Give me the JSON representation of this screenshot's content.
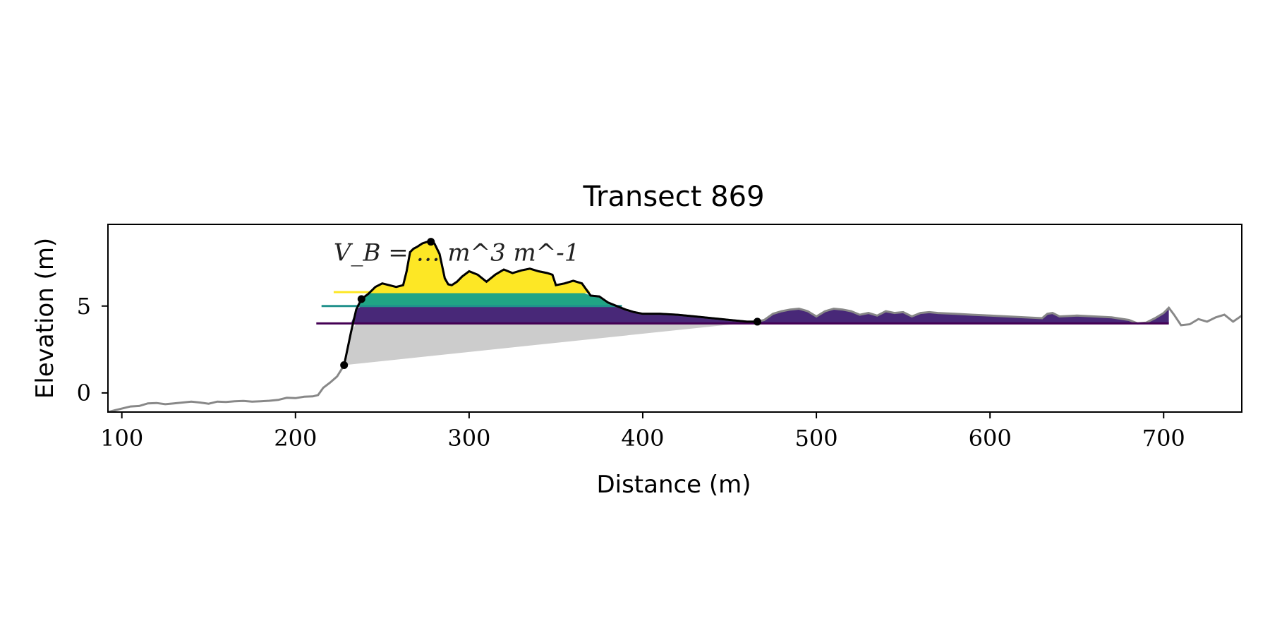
{
  "chart_data": {
    "type": "area",
    "title": "Transect 869",
    "xlabel": "Distance (m)",
    "ylabel": "Elevation (m)",
    "xlim": [
      92,
      745
    ],
    "ylim": [
      -1.1,
      9.7
    ],
    "xticks": [
      100,
      200,
      300,
      400,
      500,
      600,
      700
    ],
    "yticks": [
      0,
      5
    ],
    "annotation": "V_B = … m^3 m^-1",
    "grid": false,
    "profile": {
      "x": [
        92,
        96,
        100,
        105,
        110,
        115,
        120,
        125,
        130,
        135,
        140,
        145,
        150,
        155,
        160,
        165,
        170,
        175,
        180,
        185,
        190,
        195,
        200,
        205,
        210,
        213,
        216,
        220,
        224,
        228,
        232,
        235,
        238,
        242,
        246,
        250,
        254,
        258,
        262,
        264,
        266,
        268,
        270,
        273,
        276,
        278,
        280,
        283,
        286,
        288,
        290,
        293,
        296,
        300,
        305,
        310,
        315,
        320,
        325,
        330,
        335,
        340,
        345,
        348,
        350,
        355,
        360,
        365,
        370,
        375,
        380,
        385,
        390,
        395,
        400,
        410,
        420,
        430,
        440,
        450,
        460,
        466,
        470,
        475,
        480,
        485,
        490,
        495,
        500,
        505,
        510,
        515,
        520,
        525,
        530,
        535,
        540,
        545,
        550,
        555,
        560,
        565,
        570,
        580,
        590,
        600,
        610,
        620,
        630,
        633,
        636,
        640,
        650,
        660,
        670,
        680,
        685,
        690,
        695,
        700,
        703,
        706,
        710,
        715,
        720,
        725,
        730,
        735,
        740,
        745
      ],
      "y": [
        -1.1,
        -1.0,
        -0.9,
        -0.78,
        -0.75,
        -0.6,
        -0.58,
        -0.65,
        -0.6,
        -0.55,
        -0.5,
        -0.55,
        -0.62,
        -0.5,
        -0.52,
        -0.48,
        -0.46,
        -0.5,
        -0.48,
        -0.45,
        -0.4,
        -0.28,
        -0.3,
        -0.22,
        -0.2,
        -0.12,
        0.3,
        0.6,
        0.95,
        1.6,
        3.5,
        4.8,
        5.4,
        5.7,
        6.1,
        6.3,
        6.2,
        6.1,
        6.2,
        7.0,
        8.1,
        8.3,
        8.4,
        8.6,
        8.7,
        8.72,
        8.6,
        8.0,
        6.6,
        6.25,
        6.2,
        6.4,
        6.7,
        7.0,
        6.8,
        6.4,
        6.8,
        7.1,
        6.9,
        7.05,
        7.15,
        7.0,
        6.9,
        6.8,
        6.2,
        6.3,
        6.45,
        6.3,
        5.6,
        5.55,
        5.2,
        5.0,
        4.8,
        4.65,
        4.55,
        4.55,
        4.5,
        4.4,
        4.3,
        4.2,
        4.1,
        4.1,
        4.2,
        4.55,
        4.7,
        4.8,
        4.85,
        4.7,
        4.4,
        4.7,
        4.85,
        4.8,
        4.7,
        4.5,
        4.6,
        4.45,
        4.7,
        4.6,
        4.65,
        4.4,
        4.6,
        4.65,
        4.6,
        4.55,
        4.5,
        4.45,
        4.4,
        4.35,
        4.3,
        4.55,
        4.6,
        4.4,
        4.45,
        4.4,
        4.35,
        4.2,
        4.0,
        4.05,
        4.3,
        4.6,
        4.9,
        4.5,
        3.9,
        3.95,
        4.25,
        4.1,
        4.35,
        4.5,
        4.1,
        4.45
      ]
    },
    "series": [
      {
        "color": "#fde725",
        "level": 5.8,
        "start": 222,
        "end": 368
      },
      {
        "color": "#21918c",
        "level": 5.0,
        "start": 215,
        "end": 388
      },
      {
        "color": "#440154",
        "level": 4.0,
        "start": 212,
        "end": 703
      }
    ],
    "key_points": [
      {
        "x": 228,
        "y": 1.6
      },
      {
        "x": 238,
        "y": 5.4
      },
      {
        "x": 278,
        "y": 8.7
      },
      {
        "x": 466,
        "y": 4.1
      }
    ],
    "dune_range": [
      228,
      466
    ],
    "colors": {
      "profile_grey": "#888888",
      "dune_line": "#000000",
      "gray_fill": "#cccccc",
      "lower_fill": "#482878",
      "mid_fill": "#21a585",
      "upper_fill": "#fde725"
    }
  }
}
